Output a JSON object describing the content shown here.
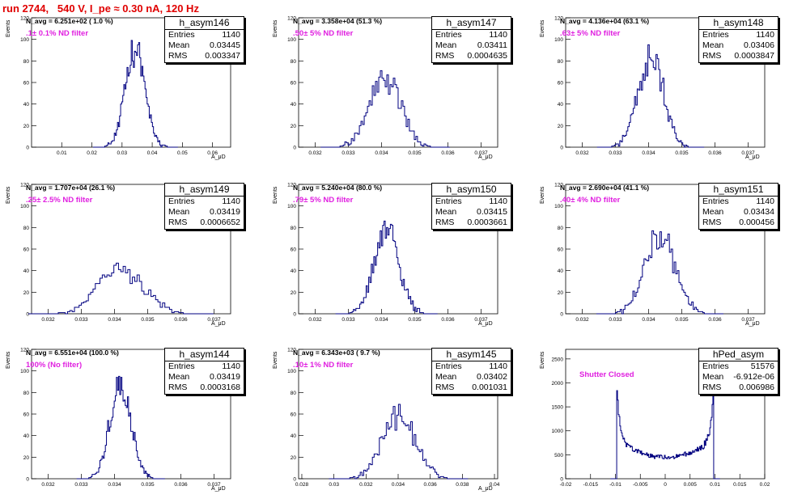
{
  "title": "run 2744,   540 V, I_pe ≈ 0.30 nA, 120 Hz",
  "stats_labels": {
    "entries": "Entries",
    "mean": "Mean",
    "rms": "RMS"
  },
  "colors": {
    "title": "#e00000",
    "annotation": "#e020e0",
    "histogram": "#000080"
  },
  "chart_data": [
    {
      "type": "histogram",
      "name": "h_asym146",
      "navg": "N_avg = 6.251e+02 ( 1.0 %)",
      "filter": ".1± 0.1% ND filter",
      "entries": "1140",
      "mean": "0.03445",
      "rms": "0.003347",
      "ylabel": "Events",
      "xlabel": "A_μD",
      "xlim": [
        0,
        0.066
      ],
      "ylim": [
        0,
        120
      ],
      "xticks": [
        0.01,
        0.02,
        0.03,
        0.04,
        0.05,
        0.06
      ],
      "xtick_labels": [
        "0.01",
        "0.02",
        "0.03",
        "0.04",
        "0.05",
        "0.06"
      ],
      "yticks": [
        0,
        20,
        40,
        60,
        80,
        100,
        120
      ],
      "center": 0.03445,
      "sigma": 0.003347,
      "peak": 88
    },
    {
      "type": "histogram",
      "name": "h_asym147",
      "navg": "N_avg = 3.358e+04 (51.3 %)",
      "filter": ".50± 5% ND filter",
      "entries": "1140",
      "mean": "0.03411",
      "rms": "0.0004635",
      "ylabel": "Events",
      "xlabel": "A_μD",
      "xlim": [
        0.0315,
        0.0375
      ],
      "ylim": [
        0,
        120
      ],
      "xticks": [
        0.032,
        0.033,
        0.034,
        0.035,
        0.036,
        0.037
      ],
      "xtick_labels": [
        "0.032",
        "0.033",
        "0.034",
        "0.035",
        "0.036",
        "0.037"
      ],
      "yticks": [
        0,
        20,
        40,
        60,
        80,
        100,
        120
      ],
      "center": 0.03411,
      "sigma": 0.0004635,
      "peak": 65
    },
    {
      "type": "histogram",
      "name": "h_asym148",
      "navg": "N_avg = 4.136e+04 (63.1 %)",
      "filter": ".63± 5% ND filter",
      "entries": "1140",
      "mean": "0.03406",
      "rms": "0.0003847",
      "ylabel": "Events",
      "xlabel": "A_μD",
      "xlim": [
        0.0315,
        0.0375
      ],
      "ylim": [
        0,
        120
      ],
      "xticks": [
        0.032,
        0.033,
        0.034,
        0.035,
        0.036,
        0.037
      ],
      "xtick_labels": [
        "0.032",
        "0.033",
        "0.034",
        "0.035",
        "0.036",
        "0.037"
      ],
      "yticks": [
        0,
        20,
        40,
        60,
        80,
        100,
        120
      ],
      "center": 0.03406,
      "sigma": 0.0003847,
      "peak": 84
    },
    {
      "type": "histogram",
      "name": "h_asym149",
      "navg": "N_avg = 1.707e+04 (26.1 %)",
      "filter": ".25± 2.5% ND filter",
      "entries": "1140",
      "mean": "0.03419",
      "rms": "0.0006652",
      "ylabel": "Events",
      "xlabel": "A_μD",
      "xlim": [
        0.0315,
        0.0375
      ],
      "ylim": [
        0,
        120
      ],
      "xticks": [
        0.032,
        0.033,
        0.034,
        0.035,
        0.036,
        0.037
      ],
      "xtick_labels": [
        "0.032",
        "0.033",
        "0.034",
        "0.035",
        "0.036",
        "0.037"
      ],
      "yticks": [
        0,
        20,
        40,
        60,
        80,
        100,
        120
      ],
      "center": 0.03419,
      "sigma": 0.0006652,
      "peak": 42
    },
    {
      "type": "histogram",
      "name": "h_asym150",
      "navg": "N_avg = 5.240e+04 (80.0 %)",
      "filter": ".79± 5% ND filter",
      "entries": "1140",
      "mean": "0.03415",
      "rms": "0.0003661",
      "ylabel": "Events",
      "xlabel": "A_μD",
      "xlim": [
        0.0315,
        0.0375
      ],
      "ylim": [
        0,
        120
      ],
      "xticks": [
        0.032,
        0.033,
        0.034,
        0.035,
        0.036,
        0.037
      ],
      "xtick_labels": [
        "0.032",
        "0.033",
        "0.034",
        "0.035",
        "0.036",
        "0.037"
      ],
      "yticks": [
        0,
        20,
        40,
        60,
        80,
        100,
        120
      ],
      "center": 0.03415,
      "sigma": 0.0003661,
      "peak": 79
    },
    {
      "type": "histogram",
      "name": "h_asym151",
      "navg": "N_avg = 2.690e+04 (41.1 %)",
      "filter": ".40± 4% ND filter",
      "entries": "1140",
      "mean": "0.03434",
      "rms": "0.000456",
      "ylabel": "Events",
      "xlabel": "A_μD",
      "xlim": [
        0.0315,
        0.0375
      ],
      "ylim": [
        0,
        120
      ],
      "xticks": [
        0.032,
        0.033,
        0.034,
        0.035,
        0.036,
        0.037
      ],
      "xtick_labels": [
        "0.032",
        "0.033",
        "0.034",
        "0.035",
        "0.036",
        "0.037"
      ],
      "yticks": [
        0,
        20,
        40,
        60,
        80,
        100,
        120
      ],
      "center": 0.03434,
      "sigma": 0.000456,
      "peak": 72
    },
    {
      "type": "histogram",
      "name": "h_asym144",
      "navg": "N_avg = 6.551e+04 (100.0 %)",
      "filter": "100% (No filter)",
      "entries": "1140",
      "mean": "0.03419",
      "rms": "0.0003168",
      "ylabel": "Events",
      "xlabel": "A_μD",
      "xlim": [
        0.0315,
        0.0375
      ],
      "ylim": [
        0,
        120
      ],
      "xticks": [
        0.032,
        0.033,
        0.034,
        0.035,
        0.036,
        0.037
      ],
      "xtick_labels": [
        "0.032",
        "0.033",
        "0.034",
        "0.035",
        "0.036",
        "0.037"
      ],
      "yticks": [
        0,
        20,
        40,
        60,
        80,
        100,
        120
      ],
      "center": 0.03419,
      "sigma": 0.0003168,
      "peak": 90
    },
    {
      "type": "histogram",
      "name": "h_asym145",
      "navg": "N_avg = 6.343e+03 ( 9.7 %)",
      "filter": ".10± 1% ND filter",
      "entries": "1140",
      "mean": "0.03402",
      "rms": "0.001031",
      "ylabel": "Events",
      "xlabel": "A_μD",
      "xlim": [
        0.0278,
        0.0402
      ],
      "ylim": [
        0,
        120
      ],
      "xticks": [
        0.028,
        0.03,
        0.032,
        0.034,
        0.036,
        0.038,
        0.04
      ],
      "xtick_labels": [
        "0.028",
        "0.03",
        "0.032",
        "0.034",
        "0.036",
        "0.038",
        "0.04"
      ],
      "yticks": [
        0,
        20,
        40,
        60,
        80,
        100,
        120
      ],
      "center": 0.03402,
      "sigma": 0.001031,
      "peak": 60
    },
    {
      "type": "histogram",
      "name": "hPed_asym",
      "navg": "",
      "filter": "Shutter Closed",
      "entries": "51576",
      "mean": "-6.912e-06",
      "rms": "0.006986",
      "ylabel": "Events",
      "xlabel": "",
      "xlim": [
        -0.02,
        0.02
      ],
      "ylim": [
        0,
        2700
      ],
      "xticks": [
        -0.02,
        -0.015,
        -0.01,
        -0.005,
        0,
        0.005,
        0.01,
        0.015,
        0.02
      ],
      "xtick_labels": [
        "-0.02",
        "-0.015",
        "-0.01",
        "-0.005",
        "0",
        "0.005",
        "0.01",
        "0.015",
        "0.02"
      ],
      "yticks": [
        0,
        500,
        1000,
        1500,
        2000,
        2500
      ],
      "shape": "pedestal",
      "edges": [
        -0.0098,
        0.0098
      ],
      "peak": 2200,
      "floor": 600
    }
  ]
}
